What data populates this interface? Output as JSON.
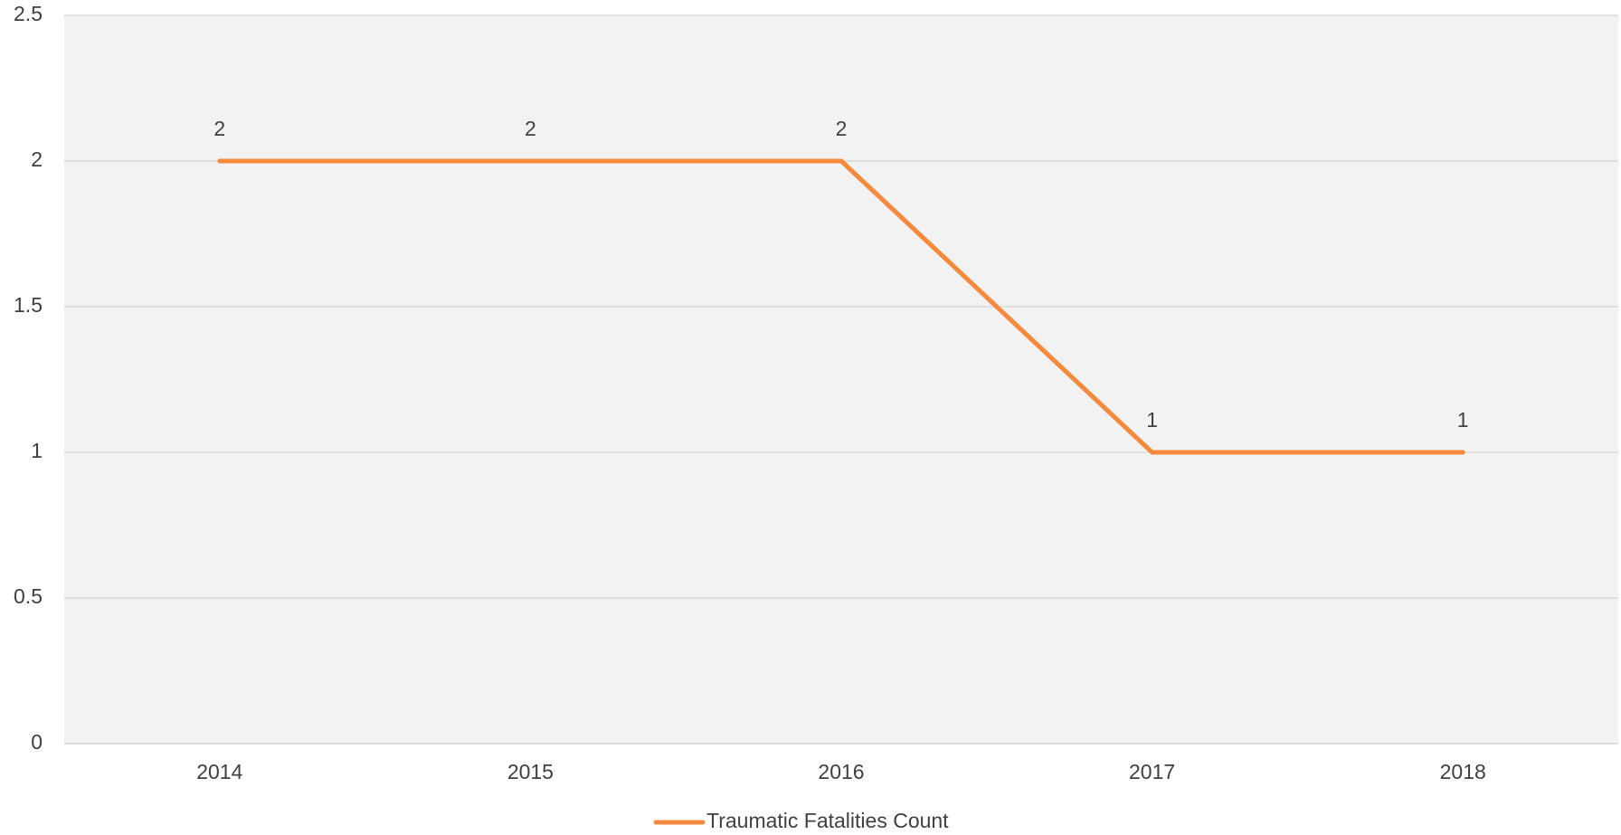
{
  "chart_data": {
    "type": "line",
    "categories": [
      "2014",
      "2015",
      "2016",
      "2017",
      "2018"
    ],
    "series": [
      {
        "name": "Traumatic Fatalities Count",
        "color": "#f58a3c",
        "values": [
          2,
          2,
          2,
          1,
          1
        ]
      }
    ],
    "ylim": [
      0,
      2.5
    ],
    "yticks": [
      0,
      0.5,
      1,
      1.5,
      2,
      2.5
    ],
    "grid": true,
    "data_labels": true,
    "legend": "bottom"
  }
}
